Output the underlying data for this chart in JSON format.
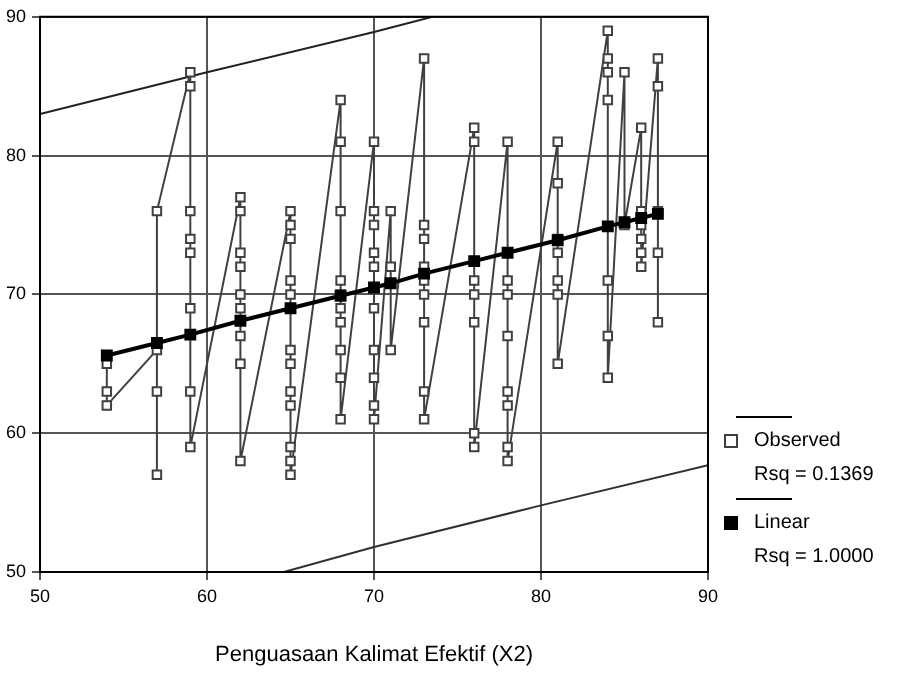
{
  "chart_data": {
    "type": "line",
    "xlabel": "Penguasaan Kalimat Efektif (X2)",
    "xlim": [
      50,
      90
    ],
    "ylim": [
      50,
      90
    ],
    "xticks": [
      50,
      60,
      70,
      80,
      90
    ],
    "yticks": [
      50,
      60,
      70,
      80,
      90
    ],
    "grid": true,
    "legend": "right",
    "annotations": [
      "Rsq = 0.1369",
      "Rsq = 1.0000"
    ],
    "series": [
      {
        "name": "Observed",
        "marker": "square",
        "color": "#404040",
        "x": [
          54,
          54,
          54,
          57,
          57,
          57,
          57,
          59,
          59,
          59,
          59,
          59,
          59,
          59,
          59,
          62,
          62,
          62,
          62,
          62,
          62,
          62,
          62,
          62,
          65,
          65,
          65,
          65,
          65,
          65,
          65,
          65,
          65,
          65,
          65,
          65,
          65,
          68,
          68,
          68,
          68,
          68,
          68,
          68,
          68,
          68,
          68,
          70,
          70,
          70,
          70,
          70,
          70,
          70,
          70,
          70,
          70,
          71,
          71,
          71,
          73,
          73,
          73,
          73,
          73,
          73,
          73,
          73,
          73,
          76,
          76,
          76,
          76,
          76,
          76,
          76,
          78,
          78,
          78,
          78,
          78,
          78,
          78,
          78,
          78,
          81,
          81,
          81,
          81,
          81,
          81,
          81,
          84,
          84,
          84,
          84,
          84,
          84,
          84,
          85,
          85,
          86,
          86,
          86,
          86,
          86,
          86,
          87,
          87,
          87,
          87,
          87
        ],
        "values": [
          65,
          63,
          62,
          66,
          57,
          63,
          76,
          86,
          85,
          76,
          74,
          73,
          69,
          63,
          59,
          77,
          76,
          73,
          72,
          70,
          69,
          67,
          65,
          58,
          76,
          75,
          74,
          71,
          70,
          69,
          66,
          65,
          63,
          62,
          59,
          58,
          57,
          84,
          81,
          76,
          71,
          70,
          69,
          68,
          66,
          64,
          61,
          81,
          76,
          75,
          73,
          72,
          69,
          66,
          64,
          62,
          61,
          76,
          72,
          66,
          87,
          75,
          74,
          72,
          71,
          70,
          68,
          63,
          61,
          82,
          81,
          71,
          70,
          68,
          60,
          59,
          81,
          73,
          71,
          70,
          67,
          63,
          62,
          59,
          58,
          81,
          78,
          74,
          73,
          71,
          70,
          65,
          89,
          87,
          86,
          84,
          71,
          67,
          64,
          86,
          75,
          82,
          76,
          75,
          74,
          73,
          72,
          87,
          85,
          76,
          73,
          68
        ]
      },
      {
        "name": "Linear",
        "marker": "square",
        "color": "#000000",
        "x": [
          54,
          57,
          59,
          62,
          65,
          68,
          70,
          71,
          73,
          76,
          78,
          81,
          84,
          85,
          86,
          87
        ],
        "values": [
          65.6,
          66.5,
          67.1,
          68.1,
          69.0,
          69.9,
          70.5,
          70.8,
          71.5,
          72.4,
          73.0,
          73.9,
          74.9,
          75.2,
          75.5,
          75.8
        ]
      },
      {
        "marker": "none",
        "color": "#202020",
        "x": [
          50,
          60,
          70,
          73.5
        ],
        "values": [
          83,
          86,
          88.9,
          90
        ]
      },
      {
        "marker": "none",
        "color": "#303030",
        "x": [
          64.6,
          70,
          80,
          90
        ],
        "values": [
          50,
          51.8,
          54.8,
          57.7
        ]
      }
    ]
  }
}
